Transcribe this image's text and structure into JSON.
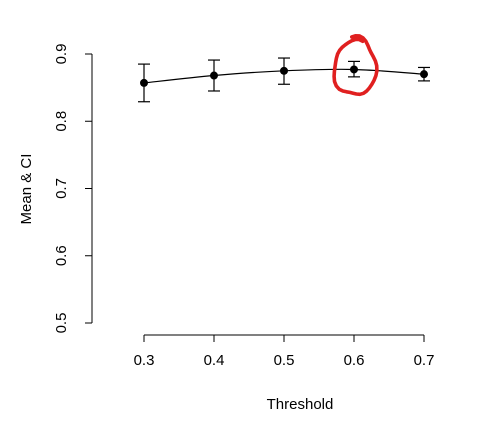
{
  "chart_data": {
    "type": "scatter",
    "title": "",
    "xlabel": "Threshold",
    "ylabel": "Mean & CI",
    "x": [
      0.3,
      0.4,
      0.5,
      0.6,
      0.7
    ],
    "y": [
      0.857,
      0.868,
      0.875,
      0.877,
      0.87
    ],
    "ci_lower": [
      0.829,
      0.845,
      0.855,
      0.866,
      0.86
    ],
    "ci_upper": [
      0.885,
      0.891,
      0.894,
      0.889,
      0.88
    ],
    "xticks": [
      "0.3",
      "0.4",
      "0.5",
      "0.6",
      "0.7"
    ],
    "yticks": [
      "0.5",
      "0.6",
      "0.7",
      "0.8",
      "0.9"
    ],
    "xlim": [
      0.3,
      0.7
    ],
    "ylim": [
      0.5,
      0.9
    ],
    "line": "smooth",
    "grid": false,
    "marker_color": "#000000",
    "annotation": {
      "type": "hand-drawn circle",
      "target_x": 0.6,
      "color": "#e02020"
    }
  }
}
